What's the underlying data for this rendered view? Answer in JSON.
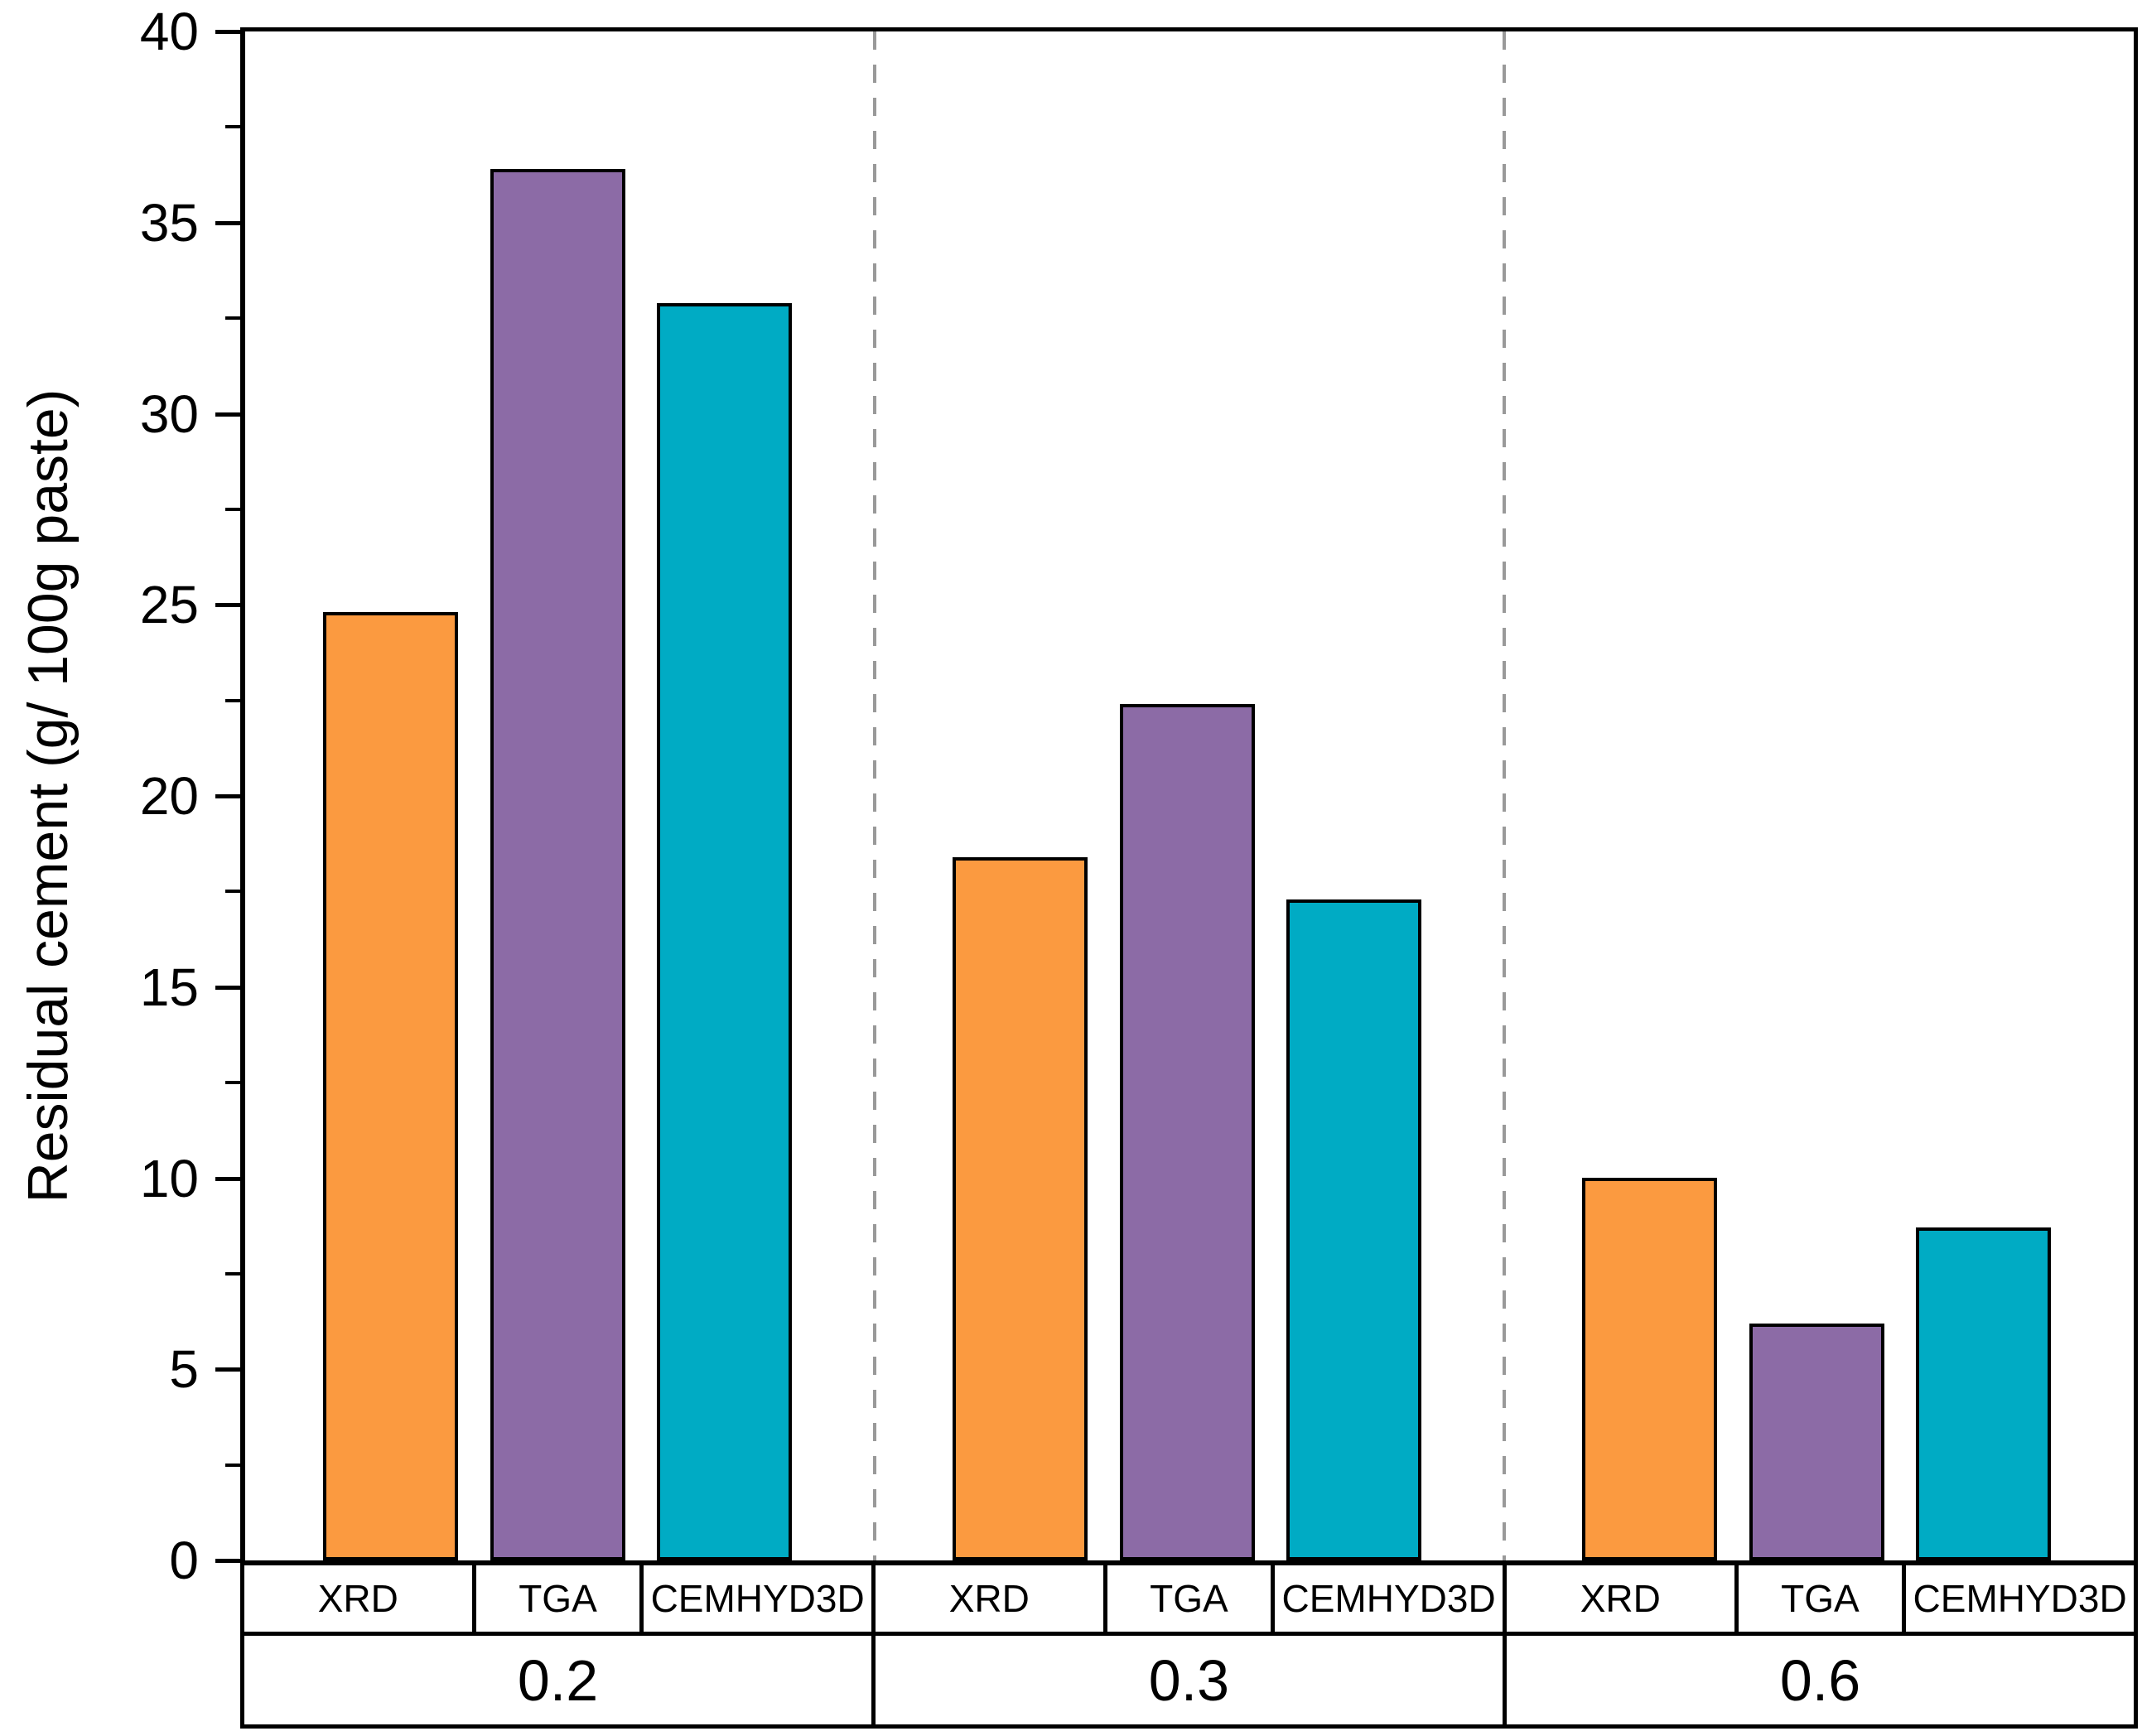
{
  "chart_data": {
    "type": "bar",
    "title": "",
    "ylabel": "Residual cement (g/ 100g paste)",
    "xlabel": "",
    "ylim": [
      0,
      40
    ],
    "ytick_major_step": 5,
    "ytick_minor_step": 2.5,
    "ytick_labels": [
      "0",
      "5",
      "10",
      "15",
      "20",
      "25",
      "30",
      "35",
      "40"
    ],
    "grid": "off",
    "legend": "none",
    "categories": [
      "0.2",
      "0.3",
      "0.6"
    ],
    "methods_per_group": [
      "XRD",
      "TGA",
      "CEMHYD3D"
    ],
    "series": [
      {
        "name": "XRD",
        "color": "#FB9A40",
        "values": [
          24.8,
          18.4,
          10.0
        ]
      },
      {
        "name": "TGA",
        "color": "#8C6BA6",
        "values": [
          36.4,
          22.4,
          6.2
        ]
      },
      {
        "name": "CEMHYD3D",
        "color": "#00ABC4",
        "values": [
          32.9,
          17.3,
          8.7
        ]
      }
    ],
    "bar_outline_color": "#000000",
    "separator_color": "#999999",
    "separator_style": "dashed"
  }
}
